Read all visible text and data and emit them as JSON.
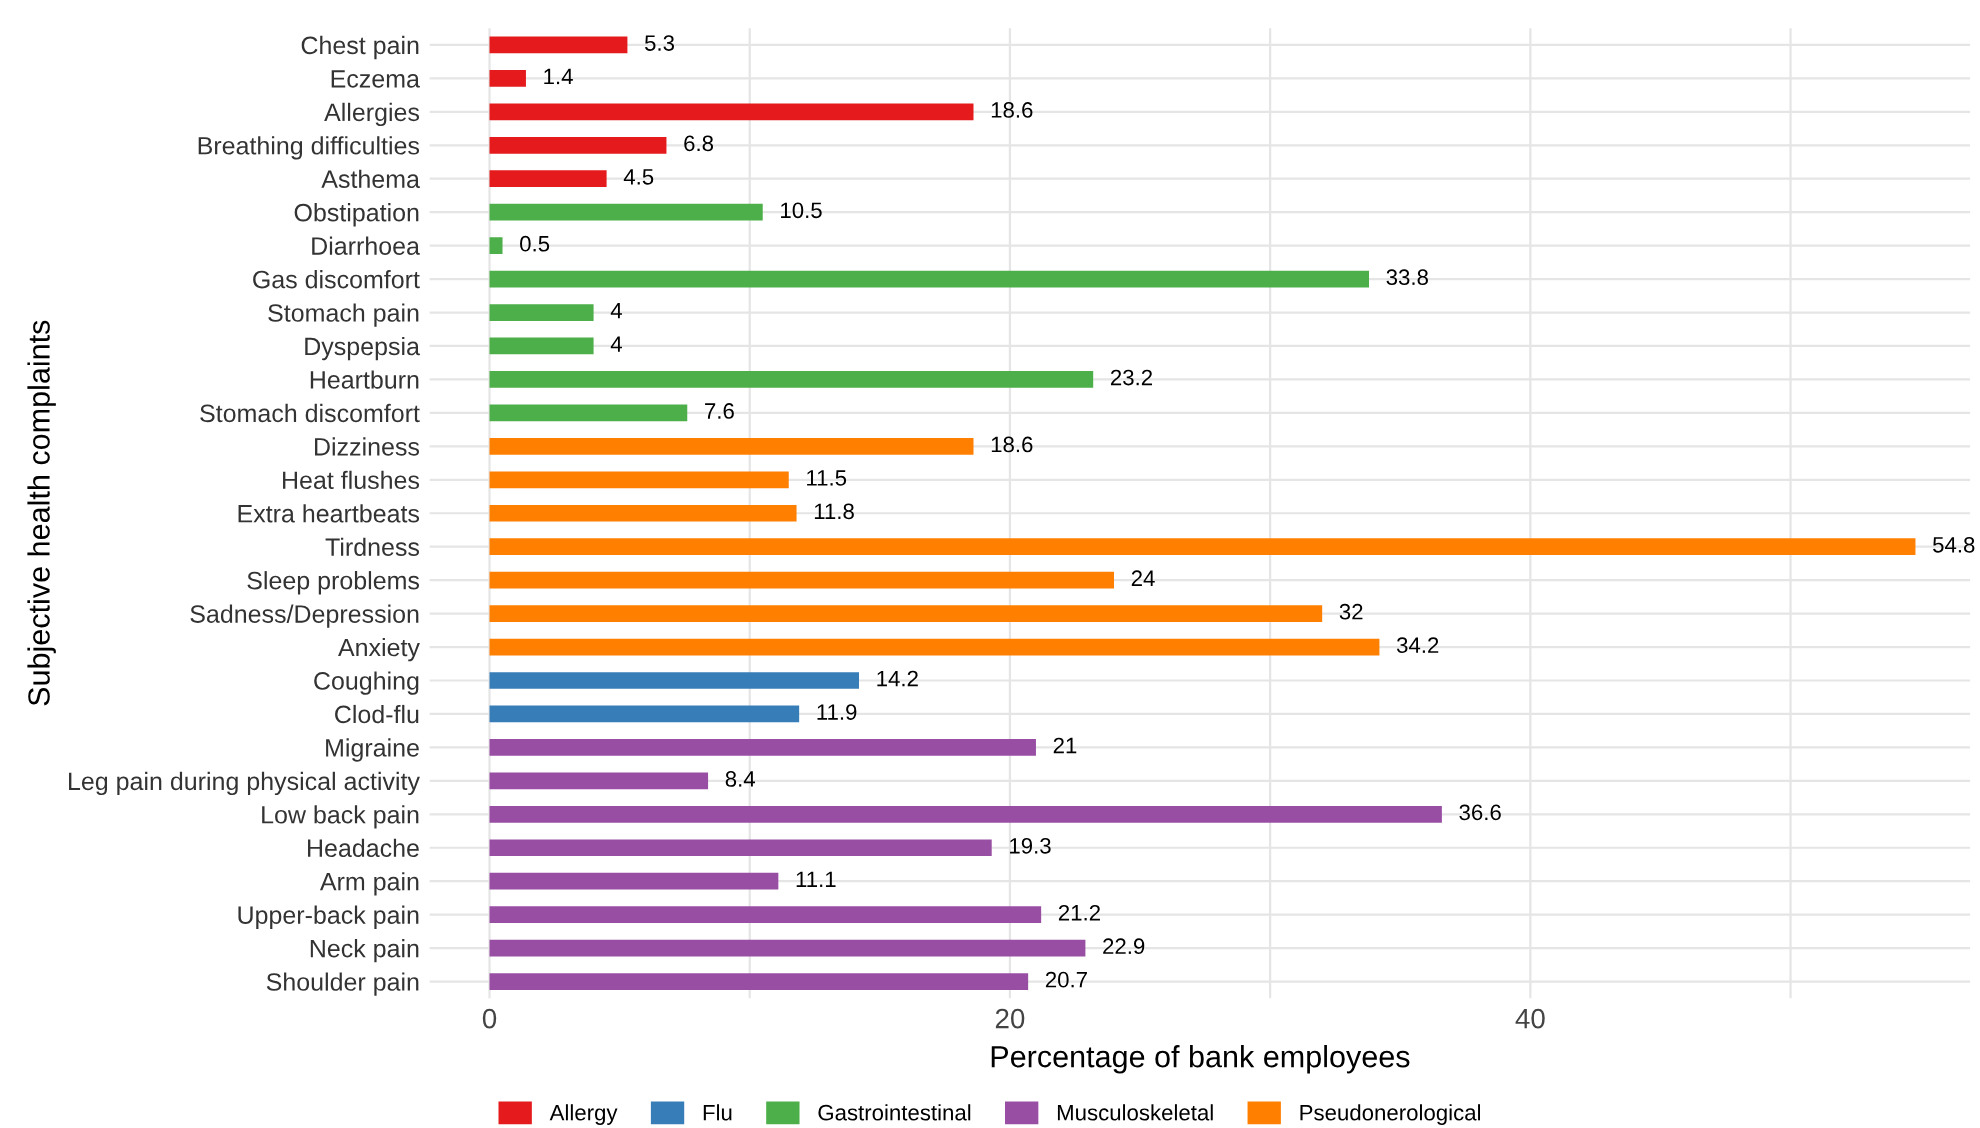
{
  "chart_data": {
    "type": "bar",
    "orientation": "horizontal",
    "xlabel": "Percentage of bank employees",
    "ylabel": "Subjective health complaints",
    "categories": [
      "Chest pain",
      "Eczema",
      "Allergies",
      "Breathing difficulties",
      "Asthema",
      "Obstipation",
      "Diarrhoea",
      "Gas discomfort",
      "Stomach pain",
      "Dyspepsia",
      "Heartburn",
      "Stomach discomfort",
      "Dizziness",
      "Heat flushes",
      "Extra heartbeats",
      "Tirdness",
      "Sleep problems",
      "Sadness/Depression",
      "Anxiety",
      "Coughing",
      "Clod-flu",
      "Migraine",
      "Leg pain during physical activity",
      "Low back pain",
      "Headache",
      "Arm pain",
      "Upper-back pain",
      "Neck pain",
      "Shoulder pain"
    ],
    "series": [
      {
        "name": "Allergy",
        "color": "#e41a1c",
        "values": [
          5.3,
          1.4,
          18.6,
          6.8,
          4.5,
          null,
          null,
          null,
          null,
          null,
          null,
          null,
          null,
          null,
          null,
          null,
          null,
          null,
          null,
          null,
          null,
          null,
          null,
          null,
          null,
          null,
          null,
          null,
          null
        ]
      },
      {
        "name": "Flu",
        "color": "#377eb8",
        "values": [
          null,
          null,
          null,
          null,
          null,
          null,
          null,
          null,
          null,
          null,
          null,
          null,
          null,
          null,
          null,
          null,
          null,
          null,
          null,
          14.2,
          11.9,
          null,
          null,
          null,
          null,
          null,
          null,
          null,
          null
        ]
      },
      {
        "name": "Gastrointestinal",
        "color": "#4daf4a",
        "values": [
          null,
          null,
          null,
          null,
          null,
          10.5,
          0.5,
          33.8,
          4,
          4,
          23.2,
          7.6,
          null,
          null,
          null,
          null,
          null,
          null,
          null,
          null,
          null,
          null,
          null,
          null,
          null,
          null,
          null,
          null,
          null
        ]
      },
      {
        "name": "Musculoskeletal",
        "color": "#984ea3",
        "values": [
          null,
          null,
          null,
          null,
          null,
          null,
          null,
          null,
          null,
          null,
          null,
          null,
          null,
          null,
          null,
          null,
          null,
          null,
          null,
          null,
          null,
          21,
          8.4,
          36.6,
          19.3,
          11.1,
          21.2,
          22.9,
          20.7
        ]
      },
      {
        "name": "Pseudonerological",
        "color": "#ff7f00",
        "values": [
          null,
          null,
          null,
          null,
          null,
          null,
          null,
          null,
          null,
          null,
          null,
          null,
          18.6,
          11.5,
          11.8,
          54.8,
          24,
          32,
          34.2,
          null,
          null,
          null,
          null,
          null,
          null,
          null,
          null,
          null,
          null
        ]
      }
    ],
    "xlim": [
      -2.3,
      56.9
    ],
    "xticks": [
      0,
      {
        "value": 10,
        "label": null
      },
      20,
      {
        "value": 30,
        "label": null
      },
      40,
      {
        "value": 50,
        "label": null
      }
    ],
    "grid": true,
    "legend": "bottom",
    "data_labels": true
  }
}
